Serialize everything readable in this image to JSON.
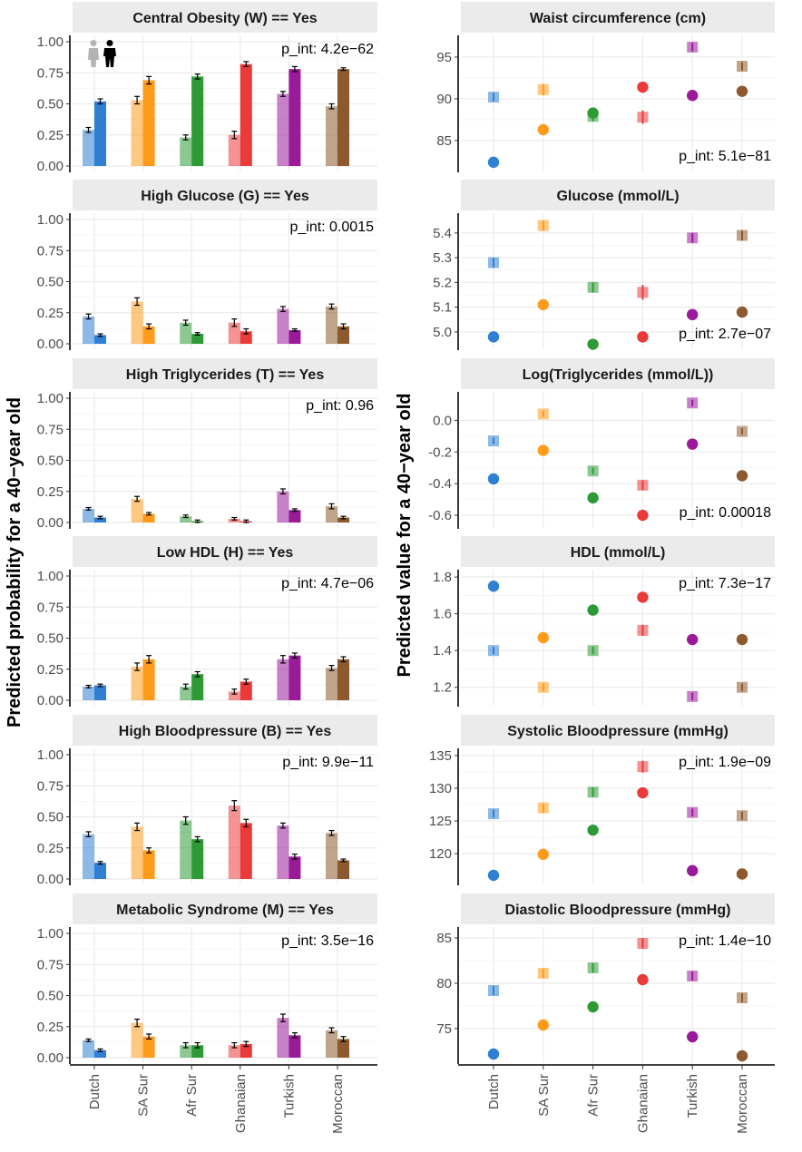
{
  "y_labels": {
    "left": "Predicted probability for a 40−year old",
    "right": "Predicted value for a 40−year old"
  },
  "categories": [
    "Dutch",
    "SA Sur",
    "Afr Sur",
    "Ghanaian",
    "Turkish",
    "Moroccan"
  ],
  "colors": {
    "Dutch": "#2f7fd4",
    "SA Sur": "#ff9a1a",
    "Afr Sur": "#2e9a36",
    "Ghanaian": "#ea3a3a",
    "Turkish": "#9a1a9a",
    "Moroccan": "#8c5a2e"
  },
  "legend_icons": [
    "female-figure-icon",
    "male-figure-icon"
  ],
  "chart_data": [
    {
      "type": "bar",
      "title": "Central Obesity (W) == Yes",
      "p_int": "p_int: 4.2e−62",
      "ylim": [
        0,
        1
      ],
      "yticks": [
        "0.00",
        "0.25",
        "0.50",
        "0.75",
        "1.00"
      ],
      "series": [
        {
          "name": "female",
          "values": [
            0.29,
            0.53,
            0.23,
            0.25,
            0.58,
            0.48
          ],
          "err": [
            0.02,
            0.03,
            0.02,
            0.03,
            0.02,
            0.02
          ]
        },
        {
          "name": "male",
          "values": [
            0.52,
            0.69,
            0.72,
            0.82,
            0.78,
            0.78
          ],
          "err": [
            0.02,
            0.03,
            0.02,
            0.02,
            0.02,
            0.01
          ]
        }
      ]
    },
    {
      "type": "scatter",
      "title": "Waist circumference (cm)",
      "p_int": "p_int: 5.1e−81",
      "ylim": [
        81.3,
        97.6
      ],
      "yticks": [
        "85",
        "90",
        "95"
      ],
      "series": [
        {
          "name": "female",
          "values": [
            90.2,
            91.1,
            87.9,
            87.8,
            96.2,
            93.9
          ],
          "err": [
            0.5,
            0.7,
            0.6,
            0.8,
            0.5,
            0.5
          ]
        },
        {
          "name": "male",
          "values": [
            82.4,
            86.3,
            88.3,
            91.4,
            90.4,
            90.9
          ],
          "err": [
            0.3,
            0.5,
            0.4,
            0.6,
            0.4,
            0.4
          ]
        }
      ]
    },
    {
      "type": "bar",
      "title": "High Glucose (G) == Yes",
      "p_int": "p_int: 0.0015",
      "ylim": [
        0,
        1
      ],
      "yticks": [
        "0.00",
        "0.25",
        "0.50",
        "0.75",
        "1.00"
      ],
      "series": [
        {
          "name": "female",
          "values": [
            0.22,
            0.34,
            0.17,
            0.17,
            0.28,
            0.3
          ],
          "err": [
            0.02,
            0.03,
            0.02,
            0.03,
            0.02,
            0.02
          ]
        },
        {
          "name": "male",
          "values": [
            0.07,
            0.14,
            0.08,
            0.1,
            0.11,
            0.14
          ],
          "err": [
            0.01,
            0.02,
            0.01,
            0.02,
            0.01,
            0.02
          ]
        }
      ]
    },
    {
      "type": "scatter",
      "title": "Glucose (mmol/L)",
      "p_int": "p_int: 2.7e−07",
      "ylim": [
        4.93,
        5.48
      ],
      "yticks": [
        "5.0",
        "5.1",
        "5.2",
        "5.3",
        "5.4"
      ],
      "series": [
        {
          "name": "female",
          "values": [
            5.28,
            5.43,
            5.18,
            5.16,
            5.38,
            5.39
          ],
          "err": [
            0.02,
            0.02,
            0.02,
            0.03,
            0.02,
            0.02
          ]
        },
        {
          "name": "male",
          "values": [
            4.98,
            5.11,
            4.95,
            4.98,
            5.07,
            5.08
          ],
          "err": [
            0.01,
            0.02,
            0.01,
            0.02,
            0.01,
            0.01
          ]
        }
      ]
    },
    {
      "type": "bar",
      "title": "High Triglycerides (T) == Yes",
      "p_int": "p_int: 0.96",
      "ylim": [
        0,
        1
      ],
      "yticks": [
        "0.00",
        "0.25",
        "0.50",
        "0.75",
        "1.00"
      ],
      "series": [
        {
          "name": "female",
          "values": [
            0.11,
            0.19,
            0.05,
            0.03,
            0.25,
            0.13
          ],
          "err": [
            0.01,
            0.02,
            0.01,
            0.01,
            0.02,
            0.02
          ]
        },
        {
          "name": "male",
          "values": [
            0.04,
            0.07,
            0.01,
            0.01,
            0.1,
            0.04
          ],
          "err": [
            0.01,
            0.01,
            0.01,
            0.01,
            0.01,
            0.01
          ]
        }
      ]
    },
    {
      "type": "scatter",
      "title": "Log(Triglycerides (mmol/L))",
      "p_int": "p_int: 0.00018",
      "ylim": [
        -0.68,
        0.18
      ],
      "yticks": [
        "-0.6",
        "-0.4",
        "-0.2",
        "0.0"
      ],
      "series": [
        {
          "name": "female",
          "values": [
            -0.13,
            0.04,
            -0.32,
            -0.41,
            0.11,
            -0.07
          ],
          "err": [
            0.02,
            0.02,
            0.02,
            0.03,
            0.02,
            0.02
          ]
        },
        {
          "name": "male",
          "values": [
            -0.37,
            -0.19,
            -0.49,
            -0.6,
            -0.15,
            -0.35
          ],
          "err": [
            0.01,
            0.02,
            0.02,
            0.02,
            0.01,
            0.01
          ]
        }
      ]
    },
    {
      "type": "bar",
      "title": "Low HDL (H) == Yes",
      "p_int": "p_int: 4.7e−06",
      "ylim": [
        0,
        1
      ],
      "yticks": [
        "0.00",
        "0.25",
        "0.50",
        "0.75",
        "1.00"
      ],
      "series": [
        {
          "name": "female",
          "values": [
            0.11,
            0.27,
            0.11,
            0.07,
            0.33,
            0.26
          ],
          "err": [
            0.01,
            0.03,
            0.02,
            0.02,
            0.03,
            0.02
          ]
        },
        {
          "name": "male",
          "values": [
            0.12,
            0.33,
            0.21,
            0.15,
            0.36,
            0.33
          ],
          "err": [
            0.01,
            0.03,
            0.02,
            0.02,
            0.02,
            0.02
          ]
        }
      ]
    },
    {
      "type": "scatter",
      "title": "HDL (mmol/L)",
      "p_int": "p_int: 7.3e−17",
      "ylim": [
        1.1,
        1.84
      ],
      "yticks": [
        "1.2",
        "1.4",
        "1.6",
        "1.8"
      ],
      "series": [
        {
          "name": "female",
          "values": [
            1.4,
            1.2,
            1.4,
            1.51,
            1.15,
            1.2
          ],
          "err": [
            0.02,
            0.02,
            0.02,
            0.03,
            0.02,
            0.02
          ]
        },
        {
          "name": "male",
          "values": [
            1.75,
            1.47,
            1.62,
            1.69,
            1.46,
            1.46
          ],
          "err": [
            0.01,
            0.01,
            0.01,
            0.02,
            0.01,
            0.01
          ]
        }
      ]
    },
    {
      "type": "bar",
      "title": "High Bloodpressure (B) == Yes",
      "p_int": "p_int: 9.9e−11",
      "ylim": [
        0,
        1
      ],
      "yticks": [
        "0.00",
        "0.25",
        "0.50",
        "0.75",
        "1.00"
      ],
      "series": [
        {
          "name": "female",
          "values": [
            0.36,
            0.42,
            0.47,
            0.59,
            0.43,
            0.37
          ],
          "err": [
            0.02,
            0.03,
            0.03,
            0.04,
            0.02,
            0.02
          ]
        },
        {
          "name": "male",
          "values": [
            0.13,
            0.23,
            0.32,
            0.45,
            0.18,
            0.15
          ],
          "err": [
            0.01,
            0.02,
            0.02,
            0.03,
            0.02,
            0.01
          ]
        }
      ]
    },
    {
      "type": "scatter",
      "title": "Systolic Bloodpressure (mmHg)",
      "p_int": "p_int: 1.9e−09",
      "ylim": [
        115.3,
        136.1
      ],
      "yticks": [
        "120",
        "125",
        "130",
        "135"
      ],
      "series": [
        {
          "name": "female",
          "values": [
            126.1,
            127.0,
            129.4,
            133.3,
            126.3,
            125.8
          ],
          "err": [
            0.6,
            0.7,
            0.7,
            0.9,
            0.6,
            0.6
          ]
        },
        {
          "name": "male",
          "values": [
            116.7,
            119.9,
            123.6,
            129.3,
            117.4,
            116.9
          ],
          "err": [
            0.3,
            0.5,
            0.5,
            0.7,
            0.4,
            0.3
          ]
        }
      ]
    },
    {
      "type": "bar",
      "title": "Metabolic Syndrome (M) == Yes",
      "p_int": "p_int: 3.5e−16",
      "ylim": [
        0,
        1
      ],
      "yticks": [
        "0.00",
        "0.25",
        "0.50",
        "0.75",
        "1.00"
      ],
      "series": [
        {
          "name": "female",
          "values": [
            0.14,
            0.28,
            0.1,
            0.1,
            0.32,
            0.22
          ],
          "err": [
            0.01,
            0.03,
            0.02,
            0.02,
            0.03,
            0.02
          ]
        },
        {
          "name": "male",
          "values": [
            0.06,
            0.17,
            0.1,
            0.11,
            0.18,
            0.15
          ],
          "err": [
            0.01,
            0.02,
            0.02,
            0.02,
            0.02,
            0.02
          ]
        }
      ]
    },
    {
      "type": "scatter",
      "title": "Diastolic Bloodpressure (mmHg)",
      "p_int": "p_int: 1.4e−10",
      "ylim": [
        71.2,
        86.2
      ],
      "yticks": [
        "75",
        "80",
        "85"
      ],
      "series": [
        {
          "name": "female",
          "values": [
            79.2,
            81.1,
            81.7,
            84.4,
            80.8,
            78.4
          ],
          "err": [
            0.5,
            0.5,
            0.5,
            0.6,
            0.5,
            0.5
          ]
        },
        {
          "name": "male",
          "values": [
            72.2,
            75.4,
            77.4,
            80.4,
            74.1,
            72.0
          ],
          "err": [
            0.3,
            0.3,
            0.4,
            0.4,
            0.3,
            0.3
          ]
        }
      ]
    }
  ]
}
